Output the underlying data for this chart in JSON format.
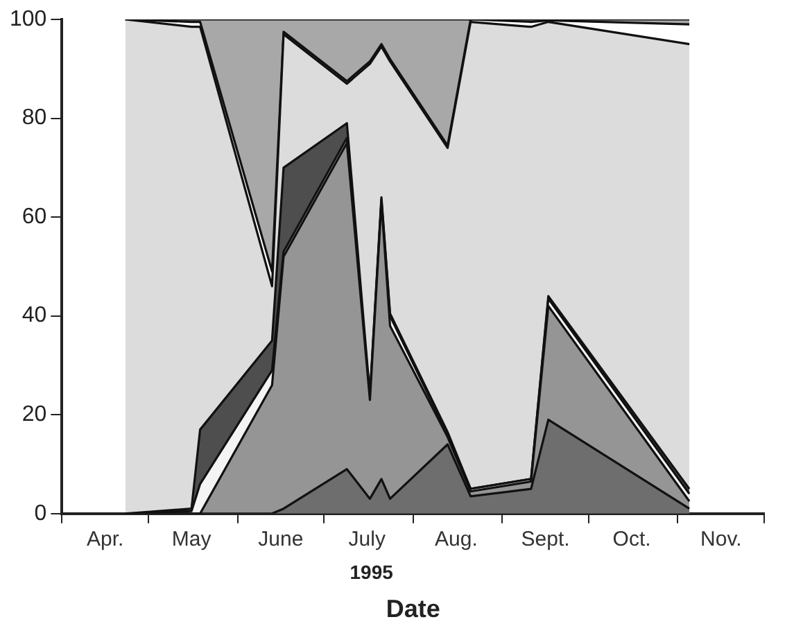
{
  "chart_data": {
    "type": "area",
    "stacked": true,
    "xlabel": "Date",
    "annotations": [
      "1995"
    ],
    "x": [
      "1995-04-23",
      "1995-05-16",
      "1995-05-19",
      "1995-06-13",
      "1995-06-17",
      "1995-07-09",
      "1995-07-17",
      "1995-07-21",
      "1995-07-24",
      "1995-08-13",
      "1995-08-21",
      "1995-09-11",
      "1995-09-17",
      "1995-11-05"
    ],
    "series": [
      {
        "color": "#6e6e6e",
        "values": [
          0,
          0,
          0,
          0,
          1,
          9,
          3,
          7,
          3,
          14,
          3.5,
          5,
          19,
          1
        ]
      },
      {
        "color": "#959595",
        "values": [
          0,
          0,
          0,
          26,
          51,
          66,
          20,
          56,
          35,
          1.5,
          1,
          1.5,
          23,
          1.5
        ]
      },
      {
        "color": "#f4f4f4",
        "values": [
          0,
          0.5,
          6,
          3,
          1,
          1,
          0.5,
          0.5,
          2,
          0.5,
          0.5,
          0.5,
          1.5,
          1.5
        ]
      },
      {
        "color": "#4e4e4e",
        "values": [
          0,
          0.5,
          11,
          6,
          17,
          3,
          0.5,
          0.5,
          0.5,
          0.5,
          0,
          0,
          0.5,
          1
        ]
      },
      {
        "color": "#dcdcdc",
        "values": [
          100,
          97.5,
          81.5,
          11,
          27,
          8,
          67,
          30.5,
          51,
          57.5,
          94.5,
          91.5,
          55.5,
          90
        ]
      },
      {
        "color": "#ffffff",
        "values": [
          0,
          1,
          1,
          3,
          0.5,
          0.5,
          0.5,
          0.5,
          0.5,
          0.5,
          0.5,
          1,
          0.3,
          4
        ]
      },
      {
        "color": "#a8a8a8",
        "values": [
          0,
          0.5,
          0.5,
          51,
          2.5,
          12.5,
          8.5,
          5,
          8,
          25.5,
          0,
          0.5,
          0.2,
          1
        ]
      }
    ],
    "xlim": [
      "1995-04-01",
      "1995-12-01"
    ],
    "xticks": [
      {
        "value": "1995-04-01",
        "label": null
      },
      {
        "value": "1995-04-16",
        "label": "Apr."
      },
      {
        "value": "1995-05-01",
        "label": null
      },
      {
        "value": "1995-05-16",
        "label": "May"
      },
      {
        "value": "1995-06-01",
        "label": null
      },
      {
        "value": "1995-06-16",
        "label": "June"
      },
      {
        "value": "1995-07-01",
        "label": null
      },
      {
        "value": "1995-07-16",
        "label": "July"
      },
      {
        "value": "1995-08-01",
        "label": null
      },
      {
        "value": "1995-08-16",
        "label": "Aug."
      },
      {
        "value": "1995-09-01",
        "label": null
      },
      {
        "value": "1995-09-16",
        "label": "Sept."
      },
      {
        "value": "1995-10-01",
        "label": null
      },
      {
        "value": "1995-10-16",
        "label": "Oct."
      },
      {
        "value": "1995-11-01",
        "label": null
      },
      {
        "value": "1995-11-16",
        "label": "Nov."
      },
      {
        "value": "1995-12-01",
        "label": null
      }
    ],
    "ylim": [
      0,
      100
    ],
    "yticks": [
      0,
      20,
      40,
      60,
      80,
      100
    ],
    "grid": false,
    "legend": false
  }
}
